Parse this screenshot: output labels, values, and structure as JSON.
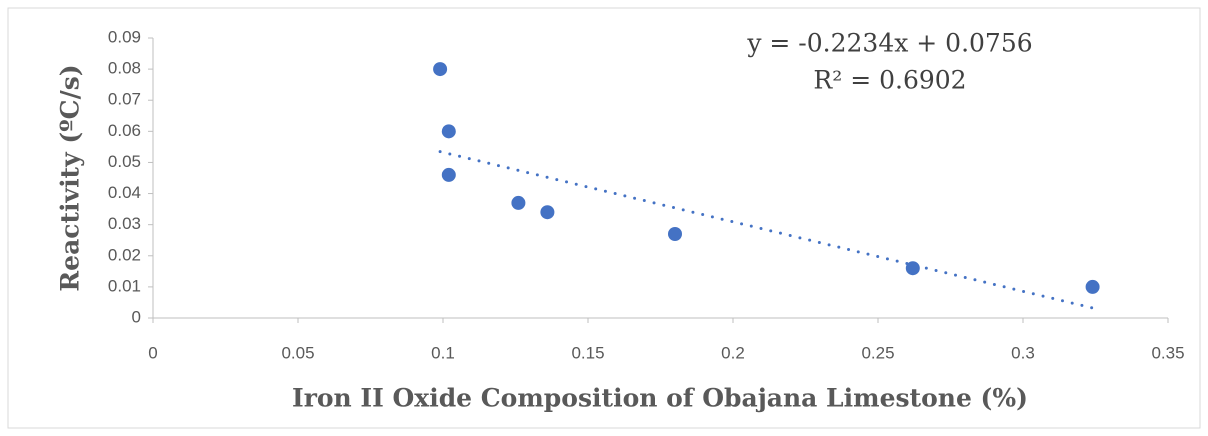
{
  "chart_data": {
    "type": "scatter",
    "x_label": "Iron II Oxide Composition of Obajana Limestone (%)",
    "y_label": "Reactivity (ºC/s)",
    "series": [
      {
        "color": "#4472c4",
        "x": [
          0.099,
          0.102,
          0.102,
          0.126,
          0.136,
          0.18,
          0.262,
          0.324
        ],
        "values": [
          0.08,
          0.06,
          0.046,
          0.037,
          0.034,
          0.027,
          0.016,
          0.01
        ]
      }
    ],
    "trendline": {
      "slope": -0.2234,
      "intercept": 0.0756,
      "label": "y = -0.2234x + 0.0756",
      "r2_label": "R² = 0.6902"
    },
    "xlim": [
      0,
      0.35
    ],
    "xticks": [
      0,
      0.05,
      0.1,
      0.15,
      0.2,
      0.25,
      0.3,
      0.35
    ],
    "ylim": [
      0,
      0.09
    ],
    "yticks": [
      0,
      0.01,
      0.02,
      0.03,
      0.04,
      0.05,
      0.06,
      0.07,
      0.08,
      0.09
    ],
    "grid": false
  }
}
